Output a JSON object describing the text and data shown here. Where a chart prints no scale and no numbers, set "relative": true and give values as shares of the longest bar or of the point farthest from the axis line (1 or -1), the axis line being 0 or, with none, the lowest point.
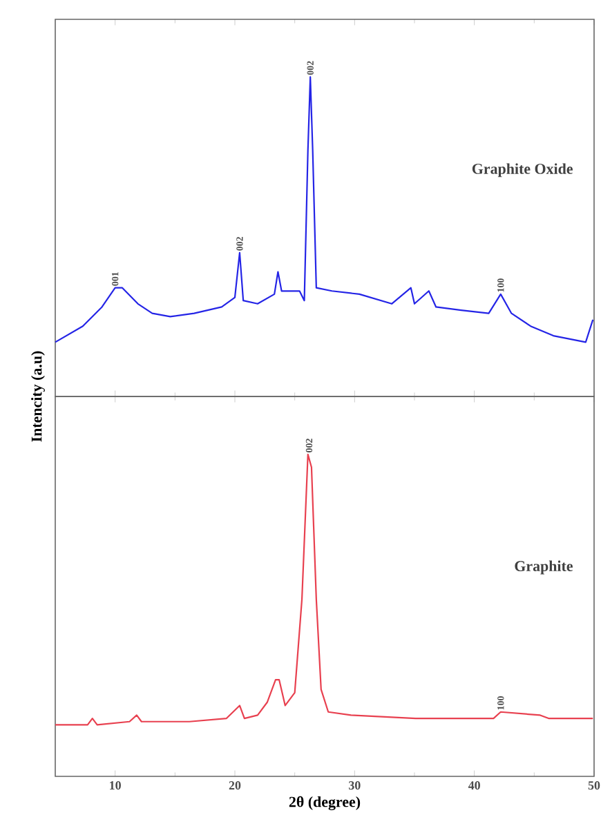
{
  "chart_data": [
    {
      "type": "line",
      "relative": true,
      "ylabel": "Intencity (a.u)",
      "xlim": [
        5,
        50
      ],
      "xticks": [
        10,
        20,
        30,
        40,
        50
      ],
      "tick_labels": false,
      "series": [
        {
          "name": "Graphite Oxide",
          "color": "#2424e6",
          "x": [
            5,
            7.3,
            8.9,
            10.0,
            10.6,
            11.9,
            13.1,
            14.6,
            16.6,
            18.9,
            20.0,
            20.4,
            20.7,
            21.9,
            23.3,
            23.6,
            23.9,
            25.4,
            25.8,
            26.1,
            26.3,
            26.5,
            26.8,
            28.1,
            30.4,
            33.1,
            34.7,
            35.0,
            36.2,
            36.8,
            38.9,
            41.2,
            42.2,
            43.1,
            44.7,
            46.6,
            49.3,
            49.9
          ],
          "values": [
            0.17,
            0.22,
            0.28,
            0.34,
            0.34,
            0.29,
            0.26,
            0.25,
            0.26,
            0.28,
            0.31,
            0.45,
            0.3,
            0.29,
            0.32,
            0.39,
            0.33,
            0.33,
            0.3,
            0.77,
            1.0,
            0.77,
            0.34,
            0.33,
            0.32,
            0.29,
            0.34,
            0.29,
            0.33,
            0.28,
            0.27,
            0.26,
            0.32,
            0.26,
            0.22,
            0.19,
            0.17,
            0.24
          ]
        }
      ],
      "annotations": [
        {
          "text": "001",
          "x": 10.0,
          "y": 0.34
        },
        {
          "text": "002",
          "x": 20.4,
          "y": 0.45
        },
        {
          "text": "002",
          "x": 26.3,
          "y": 1.0
        },
        {
          "text": "100",
          "x": 42.2,
          "y": 0.32
        }
      ]
    },
    {
      "type": "line",
      "relative": true,
      "xlabel": "2θ (degree)",
      "xlim": [
        5,
        50
      ],
      "xticks": [
        10,
        20,
        30,
        40,
        50
      ],
      "tick_labels": "x",
      "series": [
        {
          "name": "Graphite",
          "color": "#e8404f",
          "x": [
            5.0,
            7.7,
            8.1,
            8.5,
            11.2,
            11.8,
            12.2,
            16.2,
            19.3,
            20.4,
            20.8,
            21.9,
            22.7,
            23.4,
            23.7,
            24.2,
            25.0,
            25.6,
            26.1,
            26.4,
            26.8,
            27.2,
            27.8,
            29.7,
            35.1,
            41.6,
            42.2,
            45.5,
            46.2,
            49.9
          ],
          "values": [
            0.16,
            0.16,
            0.18,
            0.16,
            0.17,
            0.19,
            0.17,
            0.17,
            0.18,
            0.22,
            0.18,
            0.19,
            0.23,
            0.3,
            0.3,
            0.22,
            0.26,
            0.55,
            1.0,
            0.96,
            0.55,
            0.27,
            0.2,
            0.19,
            0.18,
            0.18,
            0.2,
            0.19,
            0.18,
            0.18
          ]
        }
      ],
      "annotations": [
        {
          "text": "002",
          "x": 26.2,
          "y": 1.0
        },
        {
          "text": "100",
          "x": 42.2,
          "y": 0.2
        }
      ]
    }
  ]
}
